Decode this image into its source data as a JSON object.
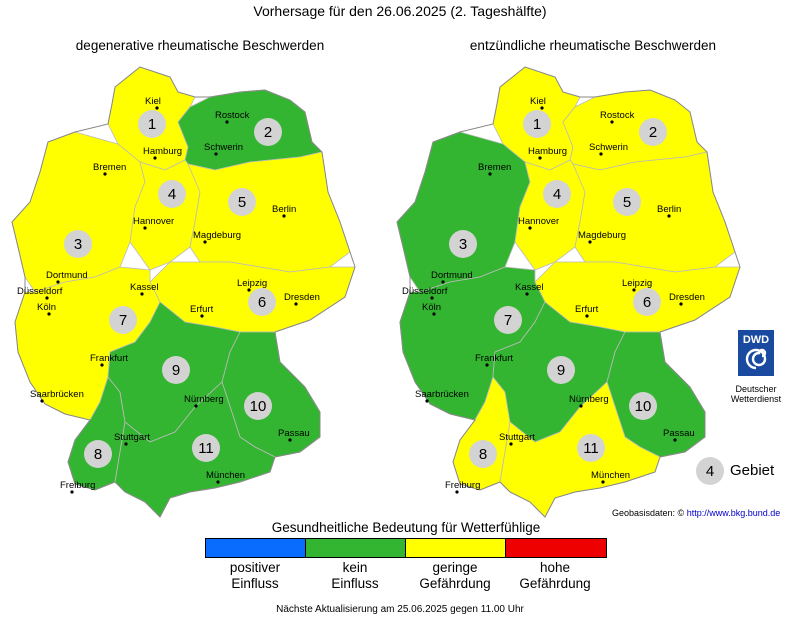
{
  "title": "Vorhersage für den 26.06.2025 (2. Tageshälfte)",
  "maps": [
    {
      "title": "degenerative rheumatische Beschwerden",
      "regions": [
        {
          "id": 1,
          "level": "geringe Gefährdung"
        },
        {
          "id": 2,
          "level": "kein Einfluss"
        },
        {
          "id": 3,
          "level": "geringe Gefährdung"
        },
        {
          "id": 4,
          "level": "geringe Gefährdung"
        },
        {
          "id": 5,
          "level": "geringe Gefährdung"
        },
        {
          "id": 6,
          "level": "geringe Gefährdung"
        },
        {
          "id": 7,
          "level": "geringe Gefährdung"
        },
        {
          "id": 8,
          "level": "kein Einfluss"
        },
        {
          "id": 9,
          "level": "kein Einfluss"
        },
        {
          "id": 10,
          "level": "kein Einfluss"
        },
        {
          "id": 11,
          "level": "kein Einfluss"
        }
      ]
    },
    {
      "title": "entzündliche rheumatische Beschwerden",
      "regions": [
        {
          "id": 1,
          "level": "geringe Gefährdung"
        },
        {
          "id": 2,
          "level": "geringe Gefährdung"
        },
        {
          "id": 3,
          "level": "kein Einfluss"
        },
        {
          "id": 4,
          "level": "geringe Gefährdung"
        },
        {
          "id": 5,
          "level": "geringe Gefährdung"
        },
        {
          "id": 6,
          "level": "geringe Gefährdung"
        },
        {
          "id": 7,
          "level": "kein Einfluss"
        },
        {
          "id": 8,
          "level": "geringe Gefährdung"
        },
        {
          "id": 9,
          "level": "kein Einfluss"
        },
        {
          "id": 10,
          "level": "kein Einfluss"
        },
        {
          "id": 11,
          "level": "geringe Gefährdung"
        }
      ]
    }
  ],
  "cities": [
    "Kiel",
    "Rostock",
    "Hamburg",
    "Schwerin",
    "Bremen",
    "Hannover",
    "Berlin",
    "Magdeburg",
    "Dortmund",
    "Düsseldorf",
    "Köln",
    "Kassel",
    "Leipzig",
    "Dresden",
    "Erfurt",
    "Frankfurt",
    "Saarbrücken",
    "Nürnberg",
    "Passau",
    "Stuttgart",
    "München",
    "Freiburg"
  ],
  "legend": {
    "title": "Gesundheitliche Bedeutung für Wetterfühlige",
    "items": [
      {
        "line1": "positiver",
        "line2": "Einfluss",
        "color": "#0a6cff"
      },
      {
        "line1": "kein",
        "line2": "Einfluss",
        "color": "#33b531"
      },
      {
        "line1": "geringe",
        "line2": "Gefährdung",
        "color": "#ffff00"
      },
      {
        "line1": "hohe",
        "line2": "Gefährdung",
        "color": "#ee0000"
      }
    ]
  },
  "key": {
    "number": "4",
    "label": "Gebiet"
  },
  "dwd": {
    "logo_text": "DWD",
    "line1": "Deutscher",
    "line2": "Wetterdienst"
  },
  "attribution": {
    "prefix": "Geobasisdaten: ©",
    "link": "http://www.bkg.bund.de"
  },
  "footer": "Nächste Aktualisierung am 25.06.2025 gegen 11.00 Uhr"
}
